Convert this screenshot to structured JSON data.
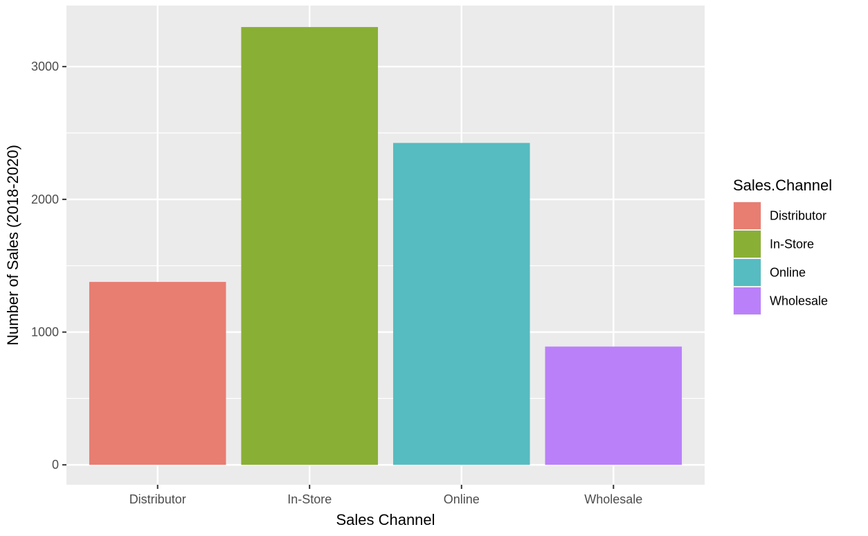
{
  "chart_data": {
    "type": "bar",
    "title": "",
    "xlabel": "Sales Channel",
    "ylabel": "Number of Sales (2018-2020)",
    "categories": [
      "Distributor",
      "In-Store",
      "Online",
      "Wholesale"
    ],
    "values": [
      1378,
      3298,
      2425,
      891
    ],
    "colors": [
      "#E87D72",
      "#8AAF35",
      "#56BCC1",
      "#BA80F9"
    ],
    "ylim": [
      -150,
      3460
    ],
    "yticks": [
      0,
      1000,
      2000,
      3000
    ],
    "ytick_labels": [
      "0",
      "1000",
      "2000",
      "3000"
    ],
    "grid": true,
    "panel_background": "#EBEBEB",
    "grid_color": "#FFFFFF",
    "legend": {
      "title": "Sales.Channel",
      "placement": "right",
      "entries": [
        "Distributor",
        "In-Store",
        "Online",
        "Wholesale"
      ]
    }
  }
}
